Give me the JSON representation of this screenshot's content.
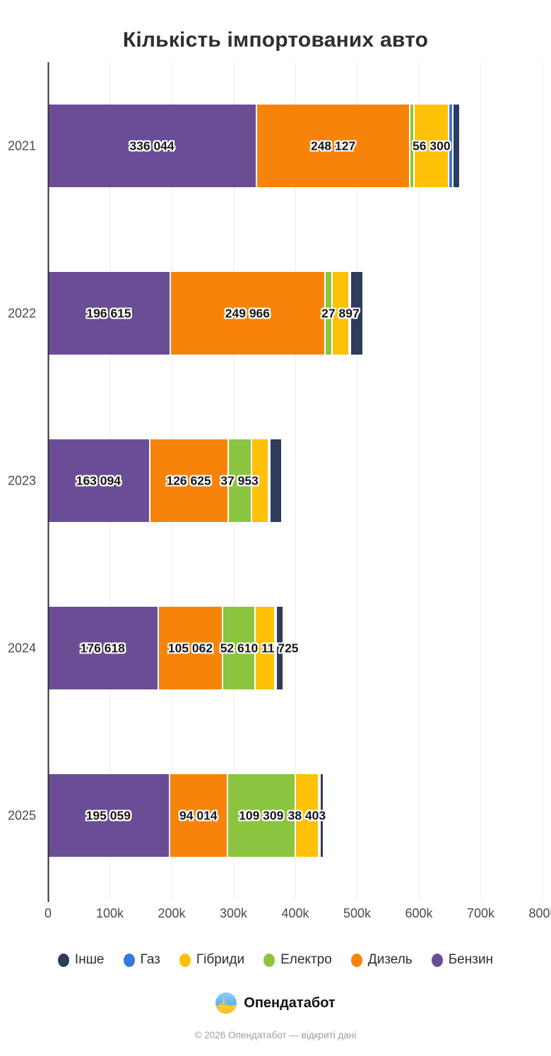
{
  "title": "Кількість імпортованих авто",
  "chart_data": {
    "type": "bar",
    "orientation": "horizontal",
    "stacked": true,
    "title": "Кількість імпортованих авто",
    "categories": [
      "2021",
      "2022",
      "2023",
      "2024",
      "2025"
    ],
    "xlim": [
      0,
      800000
    ],
    "x_ticks": [
      "0",
      "100k",
      "200k",
      "300k",
      "400k",
      "500k",
      "600k",
      "700k",
      "800k"
    ],
    "grid": true,
    "legend_position": "bottom",
    "legend_order": [
      "inshe",
      "haz",
      "hibrydy",
      "elektro",
      "dyzel",
      "benzyn"
    ],
    "series": [
      {
        "key": "benzyn",
        "name": "Бензин",
        "color": "#6B4D96",
        "values": [
          336044,
          196615,
          163094,
          176618,
          195059
        ],
        "labels": [
          "336 044",
          "196 615",
          "163 094",
          "176 618",
          "195 059"
        ]
      },
      {
        "key": "dyzel",
        "name": "Дизель",
        "color": "#F8830B",
        "values": [
          248127,
          249966,
          126625,
          105062,
          94014
        ],
        "labels": [
          "248 127",
          "249 966",
          "126 625",
          "105 062",
          "94 014"
        ]
      },
      {
        "key": "elektro",
        "name": "Електро",
        "color": "#8BC53F",
        "values": [
          6900,
          11400,
          37953,
          52610,
          109309
        ],
        "labels": [
          "",
          "",
          "37 953",
          "52 610",
          "109 309"
        ]
      },
      {
        "key": "hibrydy",
        "name": "Гібриди",
        "color": "#FFC107",
        "values": [
          56300,
          27897,
          27800,
          31600,
          38403
        ],
        "labels": [
          "56 300",
          "27 897",
          "",
          "",
          "38 403"
        ]
      },
      {
        "key": "haz",
        "name": "Газ",
        "color": "#3579DD",
        "values": [
          6100,
          1900,
          1500,
          900,
          600
        ],
        "labels": [
          "",
          "",
          "",
          "",
          ""
        ]
      },
      {
        "key": "inshe",
        "name": "Інше",
        "color": "#2E3B5B",
        "values": [
          12200,
          20200,
          19000,
          11725,
          6000
        ],
        "labels": [
          "",
          "",
          "",
          "11 725",
          ""
        ]
      }
    ]
  },
  "footer": {
    "brand": "Опендатабот",
    "copyright": "© 2026 Опендатабот — відкриті дані"
  }
}
